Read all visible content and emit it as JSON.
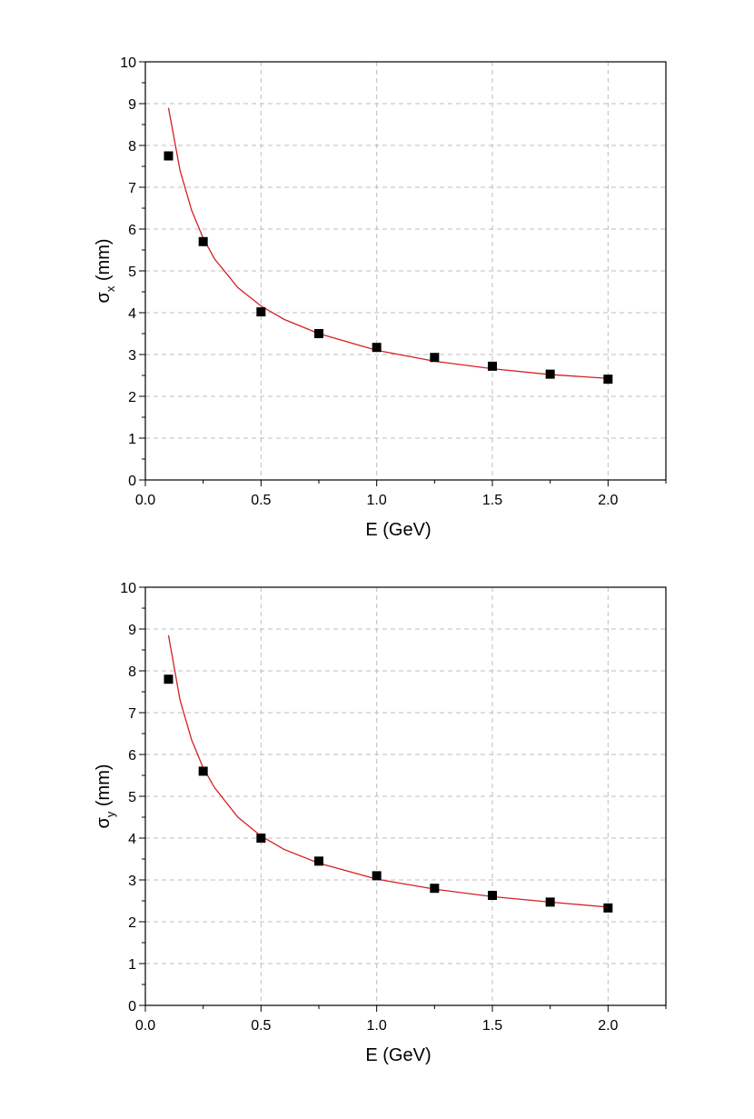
{
  "chart_data": [
    {
      "type": "scatter",
      "xlabel": "E (GeV)",
      "ylabel": {
        "symbol": "σ",
        "subscript": "x",
        "unit": "(mm)"
      },
      "xlim": [
        0.0,
        2.25
      ],
      "ylim": [
        0,
        10
      ],
      "x_ticks": [
        "0.0",
        "0.5",
        "1.0",
        "1.5",
        "2.0"
      ],
      "y_ticks": [
        "0",
        "1",
        "2",
        "3",
        "4",
        "5",
        "6",
        "7",
        "8",
        "9",
        "10"
      ],
      "grid": true,
      "series": [
        {
          "marker": "square",
          "color": "#000000",
          "x": [
            0.1,
            0.25,
            0.5,
            0.75,
            1.0,
            1.25,
            1.5,
            1.75,
            2.0
          ],
          "y": [
            7.75,
            5.7,
            4.02,
            3.5,
            3.17,
            2.93,
            2.72,
            2.53,
            2.41
          ]
        },
        {
          "line": true,
          "color": "#d42020",
          "x": [
            0.1,
            0.15,
            0.2,
            0.25,
            0.3,
            0.4,
            0.5,
            0.6,
            0.75,
            1.0,
            1.25,
            1.5,
            1.75,
            2.0
          ],
          "y": [
            8.9,
            7.4,
            6.45,
            5.78,
            5.28,
            4.6,
            4.16,
            3.84,
            3.5,
            3.1,
            2.84,
            2.66,
            2.52,
            2.43
          ]
        }
      ]
    },
    {
      "type": "scatter",
      "xlabel": "E (GeV)",
      "ylabel": {
        "symbol": "σ",
        "subscript": "y",
        "unit": "(mm)"
      },
      "xlim": [
        0.0,
        2.25
      ],
      "ylim": [
        0,
        10
      ],
      "x_ticks": [
        "0.0",
        "0.5",
        "1.0",
        "1.5",
        "2.0"
      ],
      "y_ticks": [
        "0",
        "1",
        "2",
        "3",
        "4",
        "5",
        "6",
        "7",
        "8",
        "9",
        "10"
      ],
      "grid": true,
      "series": [
        {
          "marker": "square",
          "color": "#000000",
          "x": [
            0.1,
            0.25,
            0.5,
            0.75,
            1.0,
            1.25,
            1.5,
            1.75,
            2.0
          ],
          "y": [
            7.8,
            5.6,
            4.0,
            3.45,
            3.1,
            2.8,
            2.63,
            2.47,
            2.33
          ]
        },
        {
          "line": true,
          "color": "#d42020",
          "x": [
            0.1,
            0.15,
            0.2,
            0.25,
            0.3,
            0.4,
            0.5,
            0.6,
            0.75,
            1.0,
            1.25,
            1.5,
            1.75,
            2.0
          ],
          "y": [
            8.85,
            7.3,
            6.35,
            5.68,
            5.2,
            4.5,
            4.05,
            3.73,
            3.4,
            3.02,
            2.78,
            2.6,
            2.47,
            2.35
          ]
        }
      ]
    }
  ]
}
